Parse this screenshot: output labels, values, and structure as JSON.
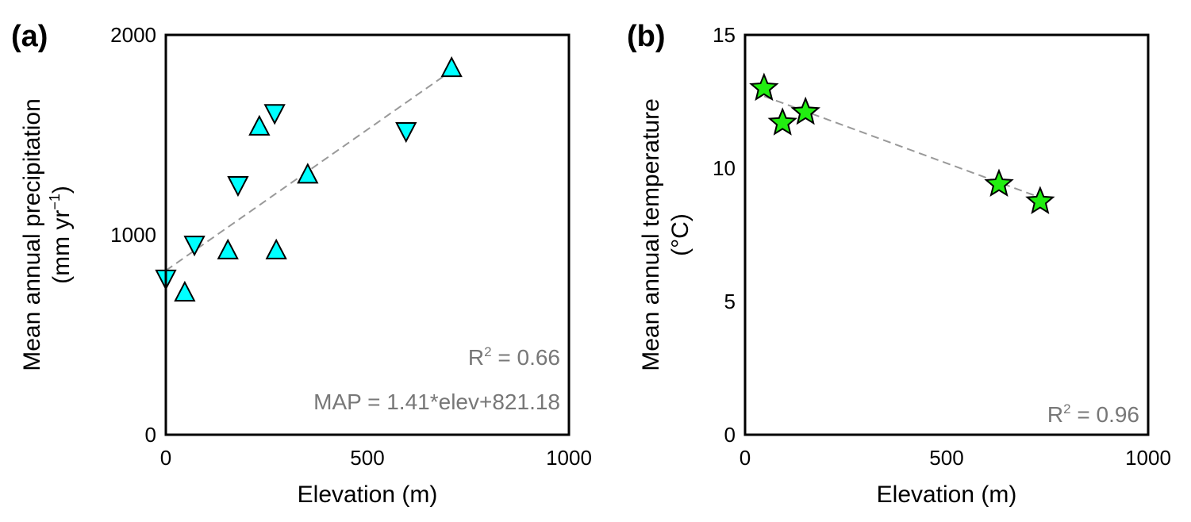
{
  "chart_data": [
    {
      "type": "scatter",
      "panel_label": "(a)",
      "xlabel": "Elevation (m)",
      "ylabel_line1": "Mean annual precipitation",
      "ylabel_line2_pre": "(mm yr",
      "ylabel_line2_sup": "−1",
      "ylabel_line2_post": ")",
      "xlim": [
        0,
        1000
      ],
      "ylim": [
        0,
        2000
      ],
      "xticks": [
        "0",
        "500",
        "1000"
      ],
      "xtick_values": [
        0,
        500,
        1000
      ],
      "yticks": [
        "0",
        "1000",
        "2000"
      ],
      "ytick_values": [
        0,
        1000,
        2000
      ],
      "marker_color": "#00ffff",
      "points": [
        {
          "x": 709,
          "y": 1833,
          "marker": "triangle-up"
        },
        {
          "x": 270,
          "y": 1610,
          "marker": "triangle-down"
        },
        {
          "x": 232,
          "y": 1540,
          "marker": "triangle-up"
        },
        {
          "x": 596,
          "y": 1520,
          "marker": "triangle-down"
        },
        {
          "x": 179,
          "y": 1250,
          "marker": "triangle-down"
        },
        {
          "x": 352,
          "y": 1300,
          "marker": "triangle-up"
        },
        {
          "x": 71,
          "y": 952,
          "marker": "triangle-down"
        },
        {
          "x": 154,
          "y": 921,
          "marker": "triangle-up"
        },
        {
          "x": 274,
          "y": 921,
          "marker": "triangle-up"
        },
        {
          "x": 0,
          "y": 782,
          "marker": "triangle-down"
        },
        {
          "x": 47,
          "y": 710,
          "marker": "triangle-up"
        }
      ],
      "trendline": {
        "x": [
          0,
          709
        ],
        "y": [
          821.18,
          1821
        ]
      },
      "r2_pre": "R",
      "r2_sup": "2",
      "r2_post": " = 0.66",
      "equation": "MAP = 1.41*elev+821.18"
    },
    {
      "type": "scatter",
      "panel_label": "(b)",
      "xlabel": "Elevation (m)",
      "ylabel_line1": "Mean annual temperature",
      "ylabel_line2": "(°C)",
      "xlim": [
        0,
        1000
      ],
      "ylim": [
        0,
        15
      ],
      "xticks": [
        "0",
        "500",
        "1000"
      ],
      "xtick_values": [
        0,
        500,
        1000
      ],
      "yticks": [
        "0",
        "5",
        "10",
        "15"
      ],
      "ytick_values": [
        0,
        5,
        10,
        15
      ],
      "marker_color": "#22ee11",
      "points": [
        {
          "x": 47,
          "y": 13.0,
          "marker": "star"
        },
        {
          "x": 93,
          "y": 11.7,
          "marker": "star"
        },
        {
          "x": 150,
          "y": 12.1,
          "marker": "star"
        },
        {
          "x": 630,
          "y": 9.4,
          "marker": "star"
        },
        {
          "x": 732,
          "y": 8.75,
          "marker": "star"
        }
      ],
      "trendline": {
        "x": [
          47,
          732
        ],
        "y": [
          12.7,
          8.9
        ]
      },
      "r2_pre": "R",
      "r2_sup": "2",
      "r2_post": " = 0.96"
    }
  ]
}
